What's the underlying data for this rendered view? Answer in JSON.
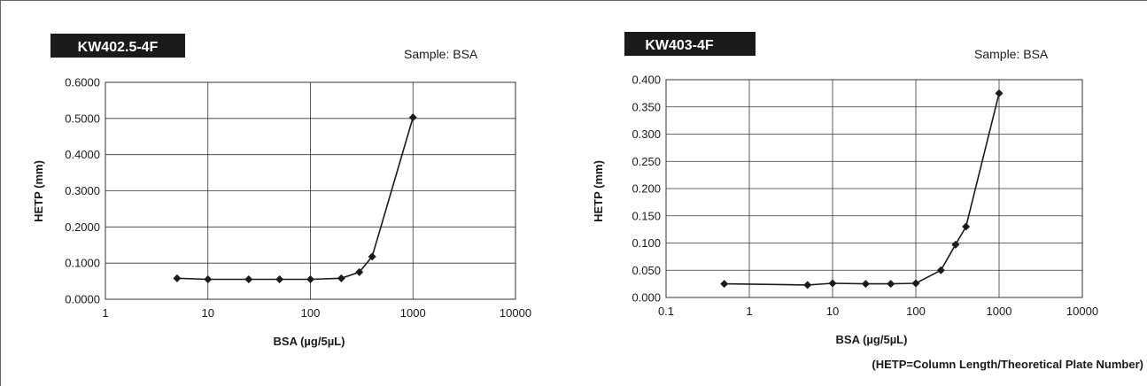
{
  "footnote": "(HETP=Column Length/Theoretical Plate Number)",
  "colors": {
    "badge_bg": "#1a1a1a",
    "line": "#1a1a1a",
    "grid": "#333333"
  },
  "chart_data": [
    {
      "type": "line",
      "title": "KW402.5-4F",
      "annotation": "Sample: BSA",
      "xlabel": "BSA (µg/5µL)",
      "ylabel": "HETP (mm)",
      "xscale": "log",
      "xlim": [
        1,
        10000
      ],
      "ylim": [
        0,
        0.6
      ],
      "xticks": [
        "1",
        "10",
        "100",
        "1000",
        "10000"
      ],
      "yticks": [
        "0.0000",
        "0.1000",
        "0.2000",
        "0.3000",
        "0.4000",
        "0.5000",
        "0.6000"
      ],
      "grid": true,
      "marker": "diamond",
      "series": [
        {
          "x": [
            5,
            10,
            25,
            50,
            100,
            200,
            300,
            400,
            1000
          ],
          "y": [
            0.058,
            0.055,
            0.055,
            0.055,
            0.055,
            0.058,
            0.075,
            0.118,
            0.503
          ]
        }
      ]
    },
    {
      "type": "line",
      "title": "KW403-4F",
      "annotation": "Sample: BSA",
      "xlabel": "BSA (µg/5µL)",
      "ylabel": "HETP (mm)",
      "xscale": "log",
      "xlim": [
        0.1,
        10000
      ],
      "ylim": [
        0,
        0.4
      ],
      "xticks": [
        "0.1",
        "1",
        "10",
        "100",
        "1000",
        "10000"
      ],
      "yticks": [
        "0.000",
        "0.050",
        "0.100",
        "0.150",
        "0.200",
        "0.250",
        "0.300",
        "0.350",
        "0.400"
      ],
      "grid": true,
      "marker": "diamond",
      "series": [
        {
          "x": [
            0.5,
            5,
            10,
            25,
            50,
            100,
            200,
            300,
            400,
            1000
          ],
          "y": [
            0.025,
            0.023,
            0.026,
            0.025,
            0.025,
            0.026,
            0.05,
            0.097,
            0.13,
            0.375
          ]
        }
      ]
    }
  ]
}
